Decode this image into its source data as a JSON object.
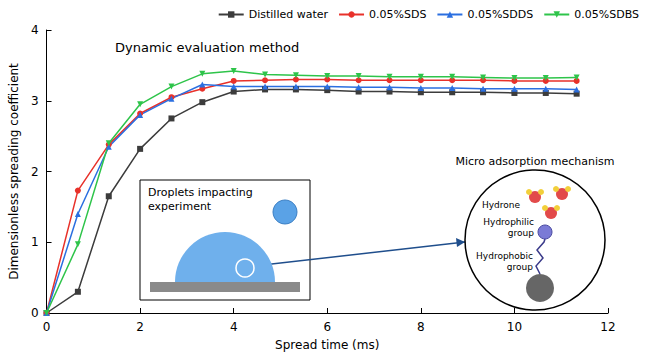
{
  "chart_data": {
    "type": "line",
    "title": "Dynamic evaluation method",
    "x_label": "Spread time (ms)",
    "y_label": "Dimensionless spreading coefficient",
    "x": [
      0,
      0.67,
      1.33,
      2.0,
      2.67,
      3.33,
      4.0,
      4.67,
      5.33,
      6.0,
      6.67,
      7.33,
      8.0,
      8.67,
      9.33,
      10.0,
      10.67,
      11.33
    ],
    "series": [
      {
        "name": "Distilled water",
        "color": "#3c3c3c",
        "marker": "square",
        "values": [
          0,
          0.3,
          1.65,
          2.32,
          2.75,
          2.98,
          3.13,
          3.16,
          3.16,
          3.15,
          3.13,
          3.13,
          3.12,
          3.12,
          3.12,
          3.11,
          3.11,
          3.1
        ]
      },
      {
        "name": "0.05%SDS",
        "color": "#e8312a",
        "marker": "circle",
        "values": [
          0,
          1.73,
          2.38,
          2.82,
          3.05,
          3.17,
          3.28,
          3.29,
          3.3,
          3.3,
          3.29,
          3.29,
          3.29,
          3.29,
          3.29,
          3.28,
          3.28,
          3.28
        ]
      },
      {
        "name": "0.05%SDDS",
        "color": "#2b6fe0",
        "marker": "triangle",
        "values": [
          0,
          1.4,
          2.35,
          2.8,
          3.03,
          3.23,
          3.2,
          3.2,
          3.2,
          3.2,
          3.19,
          3.19,
          3.18,
          3.18,
          3.17,
          3.17,
          3.17,
          3.16
        ]
      },
      {
        "name": "0.05%SDBS",
        "color": "#2ec44a",
        "marker": "triangle-down",
        "values": [
          0,
          0.97,
          2.4,
          2.95,
          3.2,
          3.38,
          3.42,
          3.37,
          3.36,
          3.35,
          3.35,
          3.34,
          3.34,
          3.34,
          3.33,
          3.32,
          3.32,
          3.33
        ]
      }
    ],
    "xlim": [
      0,
      12
    ],
    "xticks": [
      0,
      2,
      4,
      6,
      8,
      10,
      12
    ],
    "ylim": [
      0,
      4
    ],
    "yticks": [
      0,
      1,
      2,
      3,
      4
    ],
    "grid": false,
    "legend": "top",
    "annotations": {
      "inset": "Droplets impacting experiment",
      "zoom": "Micro adsorption mechanism",
      "hydrone": "Hydrone",
      "hydrophilic": "Hydrophilic group",
      "hydrophobic": "Hydrophobic group"
    }
  }
}
